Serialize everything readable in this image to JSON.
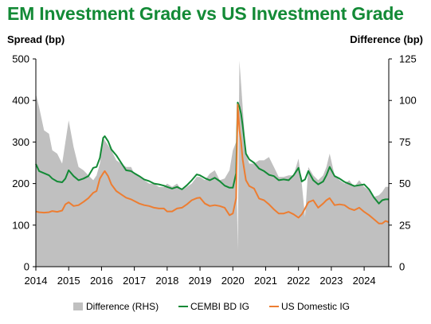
{
  "chart_data": {
    "type": "line",
    "title": "EM Investment Grade vs US Investment Grade",
    "ylabel_left": "Spread (bp)",
    "ylabel_right": "Difference (bp)",
    "ylim_left": [
      0,
      500
    ],
    "ylim_right": [
      0,
      125
    ],
    "yticks_left": [
      "0",
      "100",
      "200",
      "300",
      "400",
      "500"
    ],
    "yticks_right": [
      "0",
      "25",
      "50",
      "75",
      "100",
      "125"
    ],
    "xlim": [
      2014.0,
      2024.75
    ],
    "xticks": [
      "2014",
      "2015",
      "2016",
      "2017",
      "2018",
      "2019",
      "2020",
      "2021",
      "2022",
      "2023",
      "2024"
    ],
    "grid": false,
    "legend_position": "bottom",
    "x": [
      2014.0,
      2014.1,
      2014.25,
      2014.4,
      2014.5,
      2014.65,
      2014.8,
      2014.9,
      2015.0,
      2015.15,
      2015.3,
      2015.45,
      2015.6,
      2015.75,
      2015.85,
      2015.95,
      2016.05,
      2016.1,
      2016.2,
      2016.3,
      2016.45,
      2016.6,
      2016.75,
      2016.9,
      2017.0,
      2017.15,
      2017.3,
      2017.45,
      2017.6,
      2017.75,
      2017.9,
      2018.0,
      2018.15,
      2018.3,
      2018.45,
      2018.6,
      2018.75,
      2018.9,
      2019.0,
      2019.15,
      2019.3,
      2019.45,
      2019.6,
      2019.75,
      2019.9,
      2020.0,
      2020.1,
      2020.15,
      2020.2,
      2020.25,
      2020.3,
      2020.4,
      2020.5,
      2020.65,
      2020.8,
      2020.95,
      2021.1,
      2021.25,
      2021.4,
      2021.55,
      2021.7,
      2021.85,
      2022.0,
      2022.1,
      2022.2,
      2022.3,
      2022.45,
      2022.6,
      2022.75,
      2022.85,
      2022.95,
      2023.1,
      2023.25,
      2023.4,
      2023.55,
      2023.7,
      2023.85,
      2024.0,
      2024.15,
      2024.3,
      2024.45,
      2024.55,
      2024.65,
      2024.75
    ],
    "series": [
      {
        "name": "Difference (RHS)",
        "role": "area",
        "axis": "right",
        "color": "#c0c0c0",
        "values": [
          104,
          96,
          82,
          80,
          70,
          68,
          62,
          75,
          88,
          72,
          60,
          58,
          55,
          52,
          55,
          62,
          78,
          76,
          73,
          70,
          64,
          62,
          60,
          60,
          56,
          54,
          52,
          50,
          50,
          48,
          48,
          50,
          48,
          50,
          46,
          48,
          50,
          54,
          54,
          52,
          56,
          58,
          52,
          53,
          58,
          70,
          75,
          10,
          124,
          110,
          96,
          68,
          62,
          62,
          64,
          64,
          66,
          60,
          54,
          54,
          55,
          55,
          65,
          50,
          30,
          60,
          55,
          52,
          55,
          60,
          68,
          55,
          52,
          50,
          52,
          48,
          52,
          48,
          46,
          42,
          43,
          45,
          48,
          48
        ]
      },
      {
        "name": "CEMBI BD IG",
        "role": "line",
        "axis": "left",
        "color": "#138a36",
        "values": [
          247,
          230,
          225,
          220,
          212,
          205,
          203,
          212,
          232,
          218,
          208,
          212,
          218,
          238,
          240,
          262,
          310,
          314,
          302,
          282,
          268,
          250,
          232,
          230,
          225,
          218,
          210,
          206,
          200,
          198,
          195,
          192,
          188,
          192,
          186,
          196,
          208,
          222,
          220,
          213,
          208,
          214,
          206,
          195,
          190,
          190,
          225,
          395,
          385,
          368,
          340,
          272,
          258,
          250,
          236,
          230,
          221,
          218,
          208,
          210,
          208,
          220,
          238,
          205,
          210,
          230,
          208,
          198,
          205,
          220,
          240,
          218,
          212,
          204,
          199,
          194,
          196,
          198,
          186,
          166,
          152,
          160,
          162,
          162
        ]
      },
      {
        "name": "US Domestic IG",
        "role": "line",
        "axis": "left",
        "color": "#ed7d31",
        "values": [
          133,
          131,
          130,
          131,
          134,
          132,
          135,
          150,
          155,
          146,
          148,
          156,
          165,
          178,
          182,
          212,
          225,
          230,
          218,
          198,
          182,
          174,
          166,
          162,
          158,
          152,
          148,
          146,
          142,
          140,
          140,
          133,
          133,
          140,
          142,
          150,
          160,
          165,
          166,
          152,
          146,
          148,
          146,
          142,
          124,
          128,
          165,
          390,
          330,
          300,
          258,
          208,
          194,
          188,
          164,
          160,
          150,
          138,
          128,
          128,
          132,
          126,
          118,
          126,
          140,
          155,
          160,
          142,
          152,
          160,
          165,
          148,
          150,
          148,
          140,
          136,
          142,
          132,
          124,
          114,
          104,
          104,
          110,
          107
        ]
      }
    ]
  }
}
